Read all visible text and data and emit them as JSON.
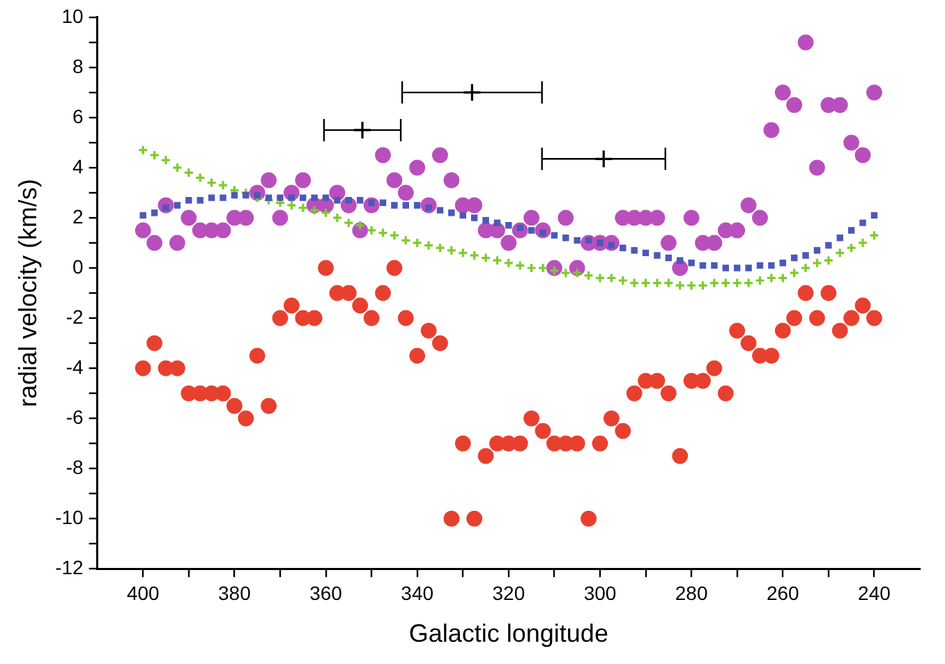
{
  "chart_data": {
    "type": "scatter",
    "xlabel": "Galactic longitude",
    "ylabel": "radial velocity (km/s)",
    "xlim": [
      410,
      230
    ],
    "ylim": [
      -12,
      10
    ],
    "xticks": [
      400,
      {
        "value": 390,
        "label": null
      },
      380,
      {
        "value": 370,
        "label": null
      },
      360,
      {
        "value": 350,
        "label": null
      },
      340,
      {
        "value": 330,
        "label": null
      },
      320,
      {
        "value": 310,
        "label": null
      },
      300,
      {
        "value": 290,
        "label": null
      },
      280,
      {
        "value": 270,
        "label": null
      },
      260,
      {
        "value": 250,
        "label": null
      },
      240
    ],
    "yticks": [
      -12,
      {
        "value": -11,
        "label": null
      },
      -10,
      {
        "value": -9,
        "label": null
      },
      -8,
      {
        "value": -7,
        "label": null
      },
      -6,
      {
        "value": -5,
        "label": null
      },
      -4,
      {
        "value": -3,
        "label": null
      },
      -2,
      {
        "value": -1,
        "label": null
      },
      0,
      {
        "value": 1,
        "label": null
      },
      2,
      {
        "value": 3,
        "label": null
      },
      4,
      {
        "value": 5,
        "label": null
      },
      6,
      {
        "value": 7,
        "label": null
      },
      8,
      {
        "value": 9,
        "label": null
      },
      10
    ],
    "x": [
      400,
      397.5,
      395,
      392.5,
      390,
      387.5,
      385,
      382.5,
      380,
      377.5,
      375,
      372.5,
      370,
      367.5,
      365,
      362.5,
      360,
      357.5,
      355,
      352.5,
      350,
      347.5,
      345,
      342.5,
      340,
      337.5,
      335,
      332.5,
      330,
      327.5,
      325,
      322.5,
      320,
      317.5,
      315,
      312.5,
      310,
      307.5,
      305,
      302.5,
      300,
      297.5,
      295,
      292.5,
      290,
      287.5,
      285,
      282.5,
      280,
      277.5,
      275,
      272.5,
      270,
      267.5,
      265,
      262.5,
      260,
      257.5,
      255,
      252.5,
      250,
      247.5,
      245,
      242.5,
      240
    ],
    "grid": false,
    "legend": false,
    "series": [
      {
        "marker": "cross",
        "color": "#000000",
        "x": [
          352,
          328,
          299.2
        ],
        "values": [
          5.5,
          7,
          4.35
        ],
        "xerrors": [
          8.4,
          15.3,
          13.5
        ]
      },
      {
        "marker": "square",
        "color": "#4c58b8",
        "values": [
          2.1,
          2.2,
          2.4,
          2.5,
          2.7,
          2.7,
          2.8,
          2.8,
          2.9,
          2.9,
          2.9,
          2.8,
          2.8,
          2.8,
          2.8,
          2.8,
          2.8,
          2.7,
          2.7,
          2.7,
          2.6,
          2.6,
          2.5,
          2.5,
          2.5,
          2.4,
          2.3,
          2.2,
          2.1,
          2,
          1.9,
          1.8,
          1.7,
          1.6,
          1.5,
          1.4,
          1.3,
          1.2,
          1.1,
          1.1,
          1,
          0.9,
          0.8,
          0.7,
          0.6,
          0.5,
          0.4,
          0.3,
          0.2,
          0.1,
          0.1,
          0,
          0,
          0,
          0.1,
          0.1,
          0.2,
          0.4,
          0.5,
          0.7,
          0.9,
          1.2,
          1.5,
          1.8,
          2.1
        ]
      },
      {
        "marker": "cross",
        "color": "#7dcb2c",
        "values": [
          4.7,
          4.5,
          4.3,
          4,
          3.8,
          3.6,
          3.4,
          3.3,
          3.1,
          3,
          2.8,
          2.7,
          2.6,
          2.5,
          2.4,
          2.3,
          2.2,
          2,
          1.8,
          1.7,
          1.5,
          1.4,
          1.3,
          1.1,
          1,
          0.9,
          0.8,
          0.7,
          0.6,
          0.5,
          0.4,
          0.3,
          0.2,
          0.1,
          0,
          0,
          -0.1,
          -0.2,
          -0.2,
          -0.3,
          -0.4,
          -0.4,
          -0.5,
          -0.6,
          -0.6,
          -0.6,
          -0.6,
          -0.7,
          -0.7,
          -0.7,
          -0.6,
          -0.6,
          -0.6,
          -0.6,
          -0.5,
          -0.4,
          -0.4,
          -0.2,
          0,
          0.2,
          0.3,
          0.6,
          0.8,
          1,
          1.3
        ]
      },
      {
        "marker": "circle",
        "color": "#b94fbd",
        "values": [
          1.5,
          1,
          2.5,
          1,
          2,
          1.5,
          1.5,
          1.5,
          2,
          2,
          3,
          3.5,
          2,
          3,
          3.5,
          2.5,
          2.5,
          3,
          2.5,
          1.5,
          2.5,
          4.5,
          3.5,
          3,
          4,
          2.5,
          4.5,
          3.5,
          2.5,
          2.5,
          1.5,
          1.5,
          1,
          1.5,
          2,
          1.5,
          0,
          2,
          0,
          1,
          1,
          1,
          2,
          2,
          2,
          2,
          1,
          0,
          2,
          1,
          1,
          1.5,
          1.5,
          2.5,
          2,
          5.5,
          7,
          6.5,
          9,
          4,
          6.5,
          6.5,
          5,
          4.5,
          7
        ]
      },
      {
        "marker": "circle",
        "color": "#e8402f",
        "values": [
          -4,
          -3,
          -4,
          -4,
          -5,
          -5,
          -5,
          -5,
          -5.5,
          -6,
          -3.5,
          -5.5,
          -2,
          -1.5,
          -2,
          -2,
          0,
          -1,
          -1,
          -1.5,
          -2,
          -1,
          0,
          -2,
          -3.5,
          -2.5,
          -3,
          -10,
          -7,
          -10,
          -7.5,
          -7,
          -7,
          -7,
          -6,
          -6.5,
          -7,
          -7,
          -7,
          -10,
          -7,
          -6,
          -6.5,
          -5,
          -4.5,
          -4.5,
          -5,
          -7.5,
          -4.5,
          -4.5,
          -4,
          -5,
          -2.5,
          -3,
          -3.5,
          -3.5,
          -2.5,
          -2,
          -1,
          -2,
          -1,
          -2.5,
          -2,
          -1.5,
          -2
        ]
      }
    ]
  }
}
